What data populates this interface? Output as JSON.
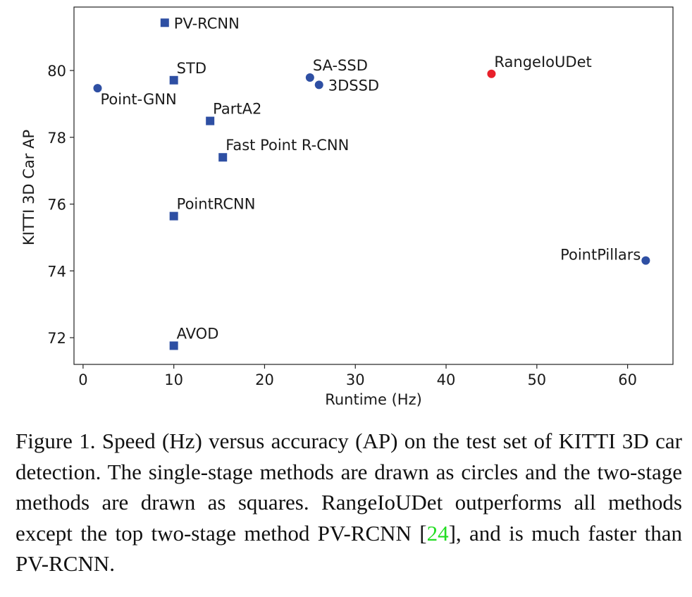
{
  "chart_data": {
    "type": "scatter",
    "title": "",
    "xlabel": "Runtime (Hz)",
    "ylabel": "KITTI 3D Car AP",
    "xlim": [
      -1,
      65
    ],
    "ylim": [
      71.2,
      81.9
    ],
    "xticks": [
      0,
      10,
      20,
      30,
      40,
      50,
      60
    ],
    "yticks": [
      72,
      74,
      76,
      78,
      80
    ],
    "grid": false,
    "colors": {
      "single_stage": "#2e4fa3",
      "two_stage": "#2e4fa3",
      "highlight": "#e8202a"
    },
    "points": [
      {
        "label": "PV-RCNN",
        "x": 9,
        "y": 81.43,
        "marker": "square",
        "group": "two_stage",
        "label_pos": "right"
      },
      {
        "label": "STD",
        "x": 10,
        "y": 79.71,
        "marker": "square",
        "group": "two_stage",
        "label_pos": "above-right"
      },
      {
        "label": "Point-GNN",
        "x": 1.6,
        "y": 79.47,
        "marker": "circle",
        "group": "single_stage",
        "label_pos": "below-right"
      },
      {
        "label": "PartA2",
        "x": 14,
        "y": 78.49,
        "marker": "square",
        "group": "two_stage",
        "label_pos": "above-right"
      },
      {
        "label": "Fast Point R-CNN",
        "x": 15.4,
        "y": 77.4,
        "marker": "square",
        "group": "two_stage",
        "label_pos": "above-right"
      },
      {
        "label": "PointRCNN",
        "x": 10,
        "y": 75.64,
        "marker": "square",
        "group": "two_stage",
        "label_pos": "above-right"
      },
      {
        "label": "AVOD",
        "x": 10,
        "y": 71.76,
        "marker": "square",
        "group": "two_stage",
        "label_pos": "above-right"
      },
      {
        "label": "SA-SSD",
        "x": 25,
        "y": 79.79,
        "marker": "circle",
        "group": "single_stage",
        "label_pos": "above-right"
      },
      {
        "label": "3DSSD",
        "x": 26,
        "y": 79.57,
        "marker": "circle",
        "group": "single_stage",
        "label_pos": "right"
      },
      {
        "label": "RangeIoUDet",
        "x": 45,
        "y": 79.9,
        "marker": "circle",
        "group": "highlight",
        "label_pos": "above-right"
      },
      {
        "label": "PointPillars",
        "x": 62,
        "y": 74.31,
        "marker": "circle",
        "group": "single_stage",
        "label_pos": "left"
      }
    ]
  },
  "caption": {
    "text_before": "Figure 1. Speed (Hz) versus accuracy (AP) on the test set of KITTI 3D car detection.  The single-stage methods are drawn as circles and the two-stage methods are drawn as squares.  RangeIoUDet outperforms all methods except the top two-stage method PV-RCNN [",
    "citation": "24",
    "text_after": "], and is much faster than PV-RCNN."
  }
}
